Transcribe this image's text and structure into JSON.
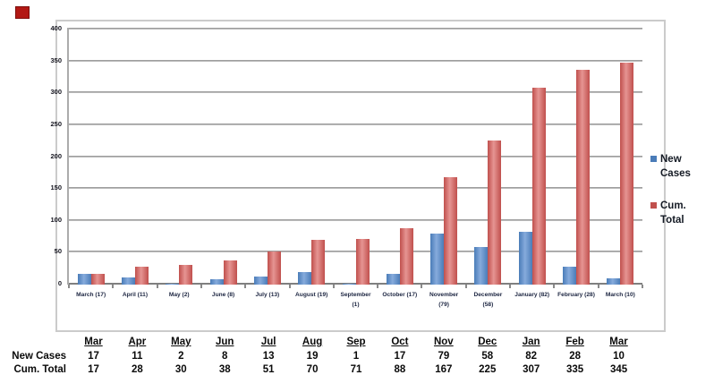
{
  "chart_data": {
    "type": "bar",
    "title": "",
    "categories": [
      "March (17)",
      "April (11)",
      "May (2)",
      "June (8)",
      "July (13)",
      "August (19)",
      "September\n(1)",
      "October (17)",
      "November\n(79)",
      "December\n(58)",
      "January (82)",
      "February (28)",
      "March (10)"
    ],
    "series": [
      {
        "name": "New Cases",
        "color": "#4a7cb8",
        "color_light": "#86abdc",
        "values": [
          17,
          11,
          2,
          8,
          13,
          19,
          1,
          17,
          79,
          58,
          82,
          28,
          10
        ]
      },
      {
        "name": "Cum. Total",
        "color": "#c0504d",
        "color_light": "#e69492",
        "values": [
          17,
          28,
          30,
          38,
          51,
          70,
          71,
          88,
          167,
          225,
          307,
          335,
          345
        ]
      }
    ],
    "ylim": [
      0,
      400
    ],
    "yticks": [
      400,
      350,
      300,
      250,
      200,
      150,
      100,
      50,
      0
    ],
    "grid": true,
    "legend_position": "right"
  },
  "legend": {
    "items": [
      {
        "label": "New Cases",
        "color": "#4a7cb8"
      },
      {
        "label": "Cum. Total",
        "color": "#c0504d"
      }
    ]
  },
  "table": {
    "columns": [
      "Mar",
      "Apr",
      "May",
      "Jun",
      "Jul",
      "Aug",
      "Sep",
      "Oct",
      "Nov",
      "Dec",
      "Jan",
      "Feb",
      "Mar"
    ],
    "rows": [
      {
        "label": "New Cases",
        "values": [
          "17",
          "11",
          "2",
          "8",
          "13",
          "19",
          "1",
          "17",
          "79",
          "58",
          "82",
          "28",
          "10"
        ]
      },
      {
        "label": "Cum. Total",
        "values": [
          "17",
          "28",
          "30",
          "38",
          "51",
          "70",
          "71",
          "88",
          "167",
          "225",
          "307",
          "335",
          "345"
        ]
      }
    ]
  },
  "decoration": {
    "corner_marker_color": "#b21814",
    "corner_marker_border": "#7d0e0c"
  }
}
